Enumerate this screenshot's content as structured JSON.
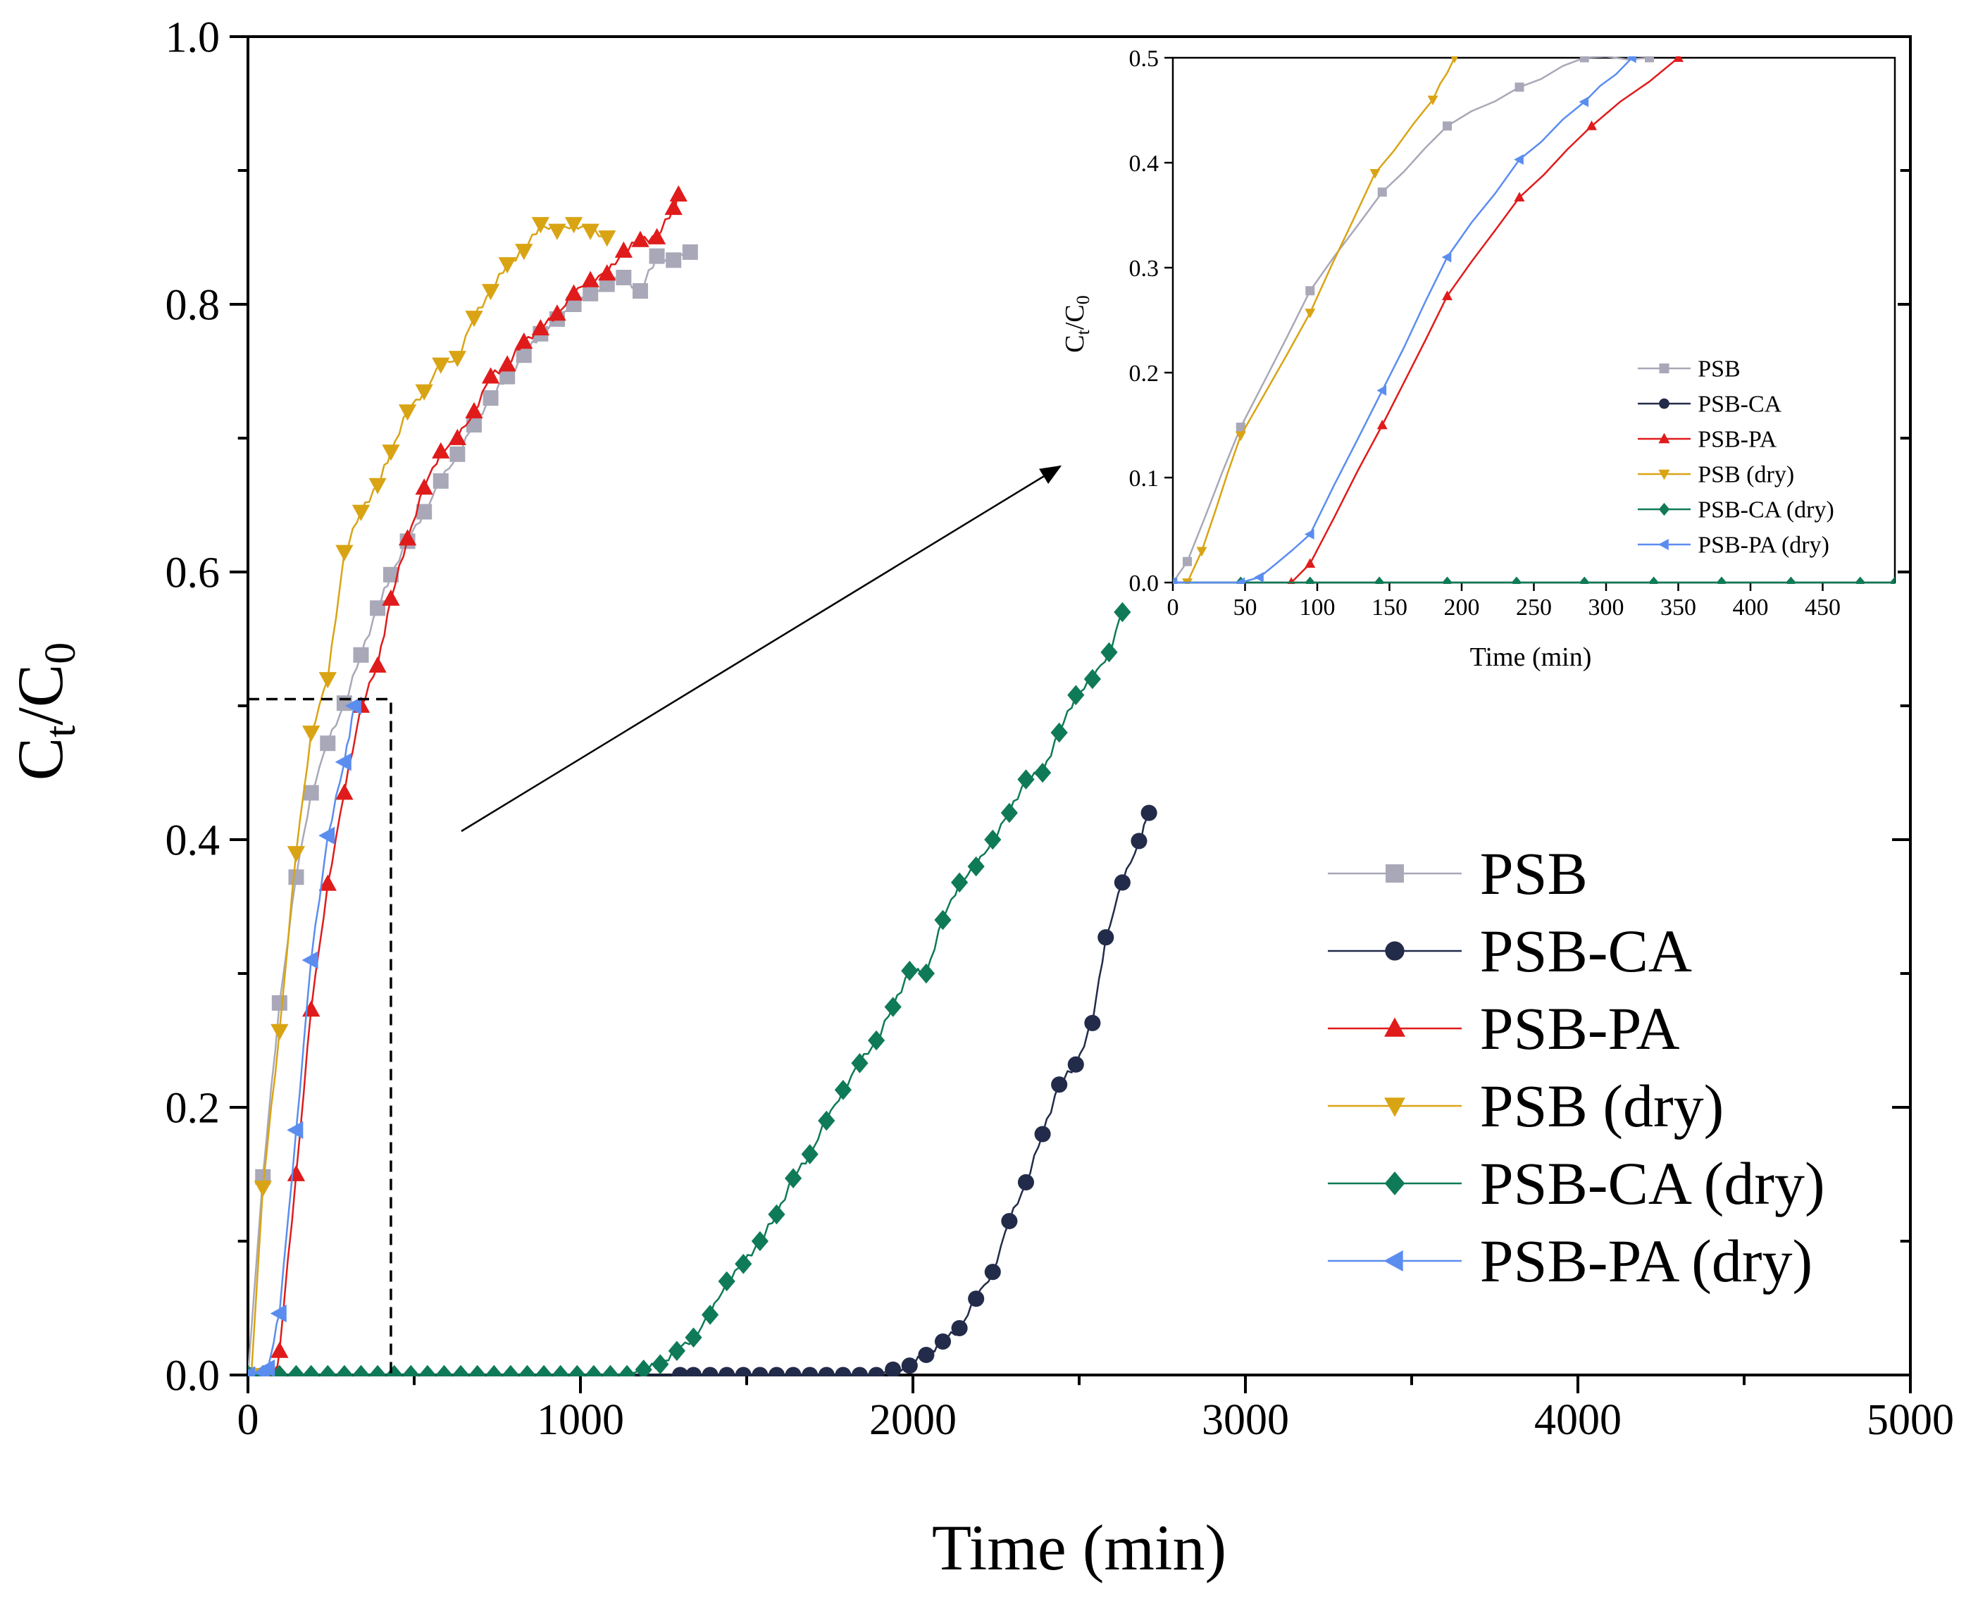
{
  "chart_data": [
    {
      "id": "main",
      "type": "line",
      "xlabel": "Time (min)",
      "ylabel_main": "C",
      "ylabel_sub1": "t",
      "ylabel_slash": "/C",
      "ylabel_sub2": "0",
      "xlim": [
        0,
        5000
      ],
      "ylim": [
        0,
        1.0
      ],
      "x_ticks": [
        0,
        1000,
        2000,
        3000,
        4000,
        5000
      ],
      "x_tick_labels": [
        "0",
        "1000",
        "2000",
        "3000",
        "4000",
        "5000"
      ],
      "y_ticks": [
        0,
        0.2,
        0.4,
        0.6,
        0.8,
        1.0
      ],
      "y_tick_labels": [
        "0.0",
        "0.2",
        "0.4",
        "0.6",
        "0.8",
        "1.0"
      ],
      "grid": false,
      "legend_position": "lower-right",
      "zoom_box": {
        "x": [
          0,
          430
        ],
        "y": [
          0,
          0.505
        ]
      },
      "series": [
        {
          "name": "PSB",
          "color": "#a8a8b8",
          "marker": "square",
          "x": [
            0,
            45,
            95,
            145,
            190,
            240,
            290,
            340,
            390,
            430,
            480,
            530,
            580,
            630,
            680,
            730,
            780,
            830,
            880,
            930,
            980,
            1030,
            1080,
            1130,
            1180,
            1230,
            1280,
            1330
          ],
          "y": [
            0,
            0.148,
            0.278,
            0.372,
            0.435,
            0.472,
            0.502,
            0.538,
            0.573,
            0.598,
            0.623,
            0.645,
            0.668,
            0.688,
            0.71,
            0.73,
            0.746,
            0.762,
            0.778,
            0.789,
            0.8,
            0.808,
            0.815,
            0.82,
            0.81,
            0.836,
            0.833,
            0.839
          ]
        },
        {
          "name": "PSB-CA",
          "color": "#232b4a",
          "marker": "circle",
          "x": [
            0,
            1300,
            1340,
            1390,
            1440,
            1490,
            1540,
            1590,
            1640,
            1690,
            1740,
            1790,
            1840,
            1890,
            1940,
            1990,
            2040,
            2090,
            2140,
            2190,
            2240,
            2290,
            2340,
            2390,
            2440,
            2490,
            2540,
            2580,
            2630,
            2680,
            2710
          ],
          "y": [
            0,
            0,
            0,
            0,
            0,
            0,
            0,
            0,
            0,
            0,
            0,
            0,
            0,
            0,
            0.004,
            0.007,
            0.015,
            0.025,
            0.035,
            0.057,
            0.077,
            0.115,
            0.144,
            0.18,
            0.217,
            0.232,
            0.263,
            0.327,
            0.368,
            0.399,
            0.42
          ]
        },
        {
          "name": "PSB-PA",
          "color": "#e01b1b",
          "marker": "triangle-up",
          "x": [
            85,
            95,
            145,
            190,
            240,
            290,
            340,
            390,
            430,
            480,
            530,
            580,
            630,
            680,
            730,
            780,
            830,
            880,
            930,
            980,
            1030,
            1080,
            1130,
            1180,
            1230,
            1280,
            1295
          ],
          "y": [
            0,
            0.018,
            0.15,
            0.273,
            0.367,
            0.435,
            0.5,
            0.53,
            0.58,
            0.625,
            0.663,
            0.69,
            0.7,
            0.72,
            0.746,
            0.755,
            0.772,
            0.782,
            0.793,
            0.808,
            0.818,
            0.823,
            0.84,
            0.848,
            0.85,
            0.872,
            0.882
          ]
        },
        {
          "name": "PSB (dry)",
          "color": "#d9a414",
          "marker": "triangle-down",
          "x": [
            10,
            45,
            95,
            145,
            190,
            240,
            290,
            340,
            390,
            430,
            480,
            530,
            580,
            630,
            680,
            730,
            780,
            830,
            880,
            930,
            980,
            1030,
            1080
          ],
          "y": [
            0,
            0.14,
            0.257,
            0.39,
            0.48,
            0.52,
            0.615,
            0.645,
            0.665,
            0.69,
            0.72,
            0.735,
            0.755,
            0.76,
            0.79,
            0.81,
            0.83,
            0.84,
            0.86,
            0.855,
            0.86,
            0.855,
            0.85
          ]
        },
        {
          "name": "PSB-CA (dry)",
          "color": "#0f7a57",
          "marker": "diamond",
          "x": [
            0,
            45,
            95,
            145,
            190,
            240,
            290,
            340,
            390,
            440,
            490,
            540,
            590,
            640,
            690,
            740,
            790,
            840,
            890,
            940,
            990,
            1040,
            1090,
            1140,
            1190,
            1240,
            1290,
            1340,
            1390,
            1440,
            1490,
            1540,
            1590,
            1640,
            1690,
            1740,
            1790,
            1840,
            1890,
            1940,
            1990,
            2040,
            2090,
            2140,
            2190,
            2240,
            2290,
            2340,
            2390,
            2440,
            2490,
            2540,
            2590,
            2630
          ],
          "y": [
            0,
            0,
            0,
            0,
            0,
            0,
            0,
            0,
            0,
            0,
            0,
            0,
            0,
            0,
            0,
            0,
            0,
            0,
            0,
            0,
            0,
            0,
            0,
            0,
            0.004,
            0.008,
            0.018,
            0.028,
            0.045,
            0.07,
            0.083,
            0.1,
            0.12,
            0.147,
            0.165,
            0.19,
            0.213,
            0.233,
            0.25,
            0.275,
            0.302,
            0.3,
            0.34,
            0.368,
            0.38,
            0.4,
            0.42,
            0.445,
            0.45,
            0.48,
            0.508,
            0.52,
            0.54,
            0.57
          ]
        },
        {
          "name": "PSB-PA (dry)",
          "color": "#5b8def",
          "marker": "triangle-left",
          "x": [
            0,
            45,
            60,
            95,
            145,
            190,
            240,
            290,
            320
          ],
          "y": [
            0,
            0.002,
            0.005,
            0.046,
            0.183,
            0.31,
            0.403,
            0.458,
            0.5
          ]
        }
      ]
    },
    {
      "id": "inset",
      "type": "line",
      "xlabel": "Time (min)",
      "ylabel_main": "C",
      "ylabel_sub1": "t",
      "ylabel_slash": "/C",
      "ylabel_sub2": "0",
      "xlim": [
        0,
        500
      ],
      "ylim": [
        0,
        0.5
      ],
      "x_ticks": [
        0,
        50,
        100,
        150,
        200,
        250,
        300,
        350,
        400,
        450
      ],
      "x_tick_labels": [
        "0",
        "50",
        "100",
        "150",
        "200",
        "250",
        "300",
        "350",
        "400",
        "450"
      ],
      "y_ticks": [
        0,
        0.1,
        0.2,
        0.3,
        0.4,
        0.5
      ],
      "y_tick_labels": [
        "0.0",
        "0.1",
        "0.2",
        "0.3",
        "0.4",
        "0.5"
      ],
      "grid": false,
      "legend_position": "lower-right",
      "series": [
        {
          "name": "PSB",
          "color": "#a8a8b8",
          "marker": "square",
          "x": [
            0,
            10,
            47,
            95,
            145,
            190,
            240,
            285,
            330
          ],
          "y": [
            0,
            0.02,
            0.148,
            0.278,
            0.372,
            0.435,
            0.472,
            0.5,
            0.5
          ]
        },
        {
          "name": "PSB-CA",
          "color": "#232b4a",
          "marker": "circle",
          "x": [],
          "y": []
        },
        {
          "name": "PSB-PA",
          "color": "#e01b1b",
          "marker": "triangle-up",
          "x": [
            82,
            95,
            145,
            190,
            240,
            290,
            350
          ],
          "y": [
            0,
            0.018,
            0.15,
            0.273,
            0.367,
            0.435,
            0.5
          ]
        },
        {
          "name": "PSB (dry)",
          "color": "#d9a414",
          "marker": "triangle-down",
          "x": [
            10,
            20,
            47,
            95,
            140,
            180,
            195
          ],
          "y": [
            0,
            0.03,
            0.14,
            0.257,
            0.39,
            0.46,
            0.5
          ]
        },
        {
          "name": "PSB-CA (dry)",
          "color": "#0f7a57",
          "marker": "diamond",
          "x": [
            0,
            47,
            95,
            143,
            190,
            238,
            285,
            333,
            380,
            428,
            476,
            500
          ],
          "y": [
            0,
            0,
            0,
            0,
            0,
            0,
            0,
            0,
            0,
            0,
            0,
            0
          ]
        },
        {
          "name": "PSB-PA (dry)",
          "color": "#5b8def",
          "marker": "triangle-left",
          "x": [
            0,
            47,
            60,
            95,
            145,
            190,
            240,
            285,
            318
          ],
          "y": [
            0,
            0,
            0.005,
            0.046,
            0.183,
            0.31,
            0.403,
            0.458,
            0.5
          ]
        }
      ]
    }
  ]
}
